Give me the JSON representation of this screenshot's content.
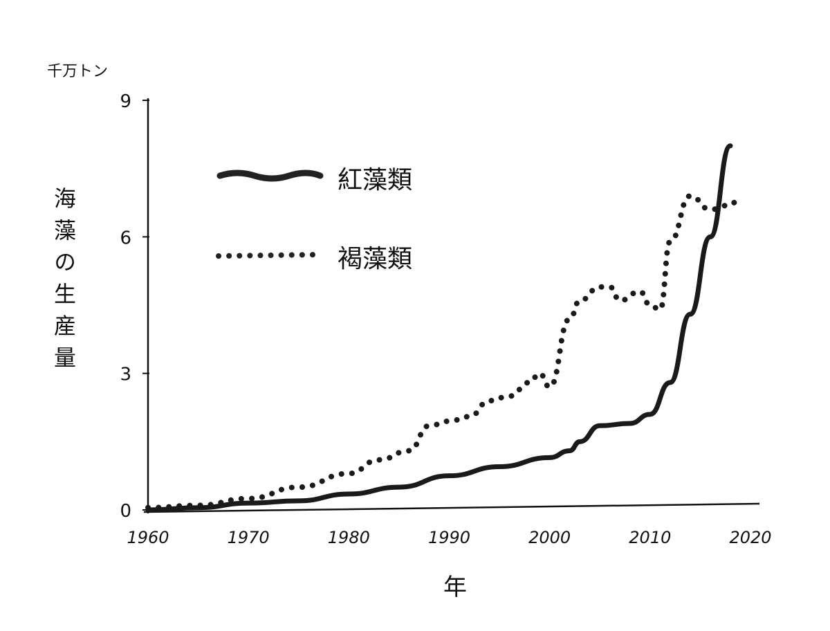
{
  "chart_data": {
    "type": "line",
    "title": "",
    "unit_label": "千万トン",
    "ylabel": "海藻の生産量",
    "xlabel": "年",
    "xlim": [
      1960,
      2020
    ],
    "ylim": [
      0,
      9
    ],
    "x_ticks": [
      1960,
      1970,
      1980,
      1990,
      2000,
      2010,
      2020
    ],
    "y_ticks": [
      0,
      3,
      6,
      9
    ],
    "grid": false,
    "legend_position": "top-left",
    "series": [
      {
        "name": "紅藻類",
        "style": "solid",
        "x": [
          1960,
          1965,
          1970,
          1975,
          1980,
          1985,
          1990,
          1995,
          2000,
          2002,
          2003,
          2005,
          2008,
          2010,
          2012,
          2014,
          2016,
          2018
        ],
        "values": [
          0,
          0.05,
          0.15,
          0.2,
          0.35,
          0.5,
          0.75,
          0.95,
          1.15,
          1.3,
          1.5,
          1.85,
          1.9,
          2.1,
          2.8,
          4.3,
          6.0,
          8.0
        ]
      },
      {
        "name": "褐藻類",
        "style": "dotted",
        "x": [
          1960,
          1965,
          1970,
          1975,
          1980,
          1983,
          1986,
          1988,
          1990,
          1992,
          1994,
          1996,
          1998,
          1999,
          2000,
          2002,
          2003,
          2005,
          2006,
          2007,
          2009,
          2010,
          2011,
          2012,
          2014,
          2016,
          2018,
          2019
        ],
        "values": [
          0.05,
          0.1,
          0.25,
          0.5,
          0.8,
          1.1,
          1.3,
          1.85,
          1.95,
          2.05,
          2.4,
          2.5,
          2.8,
          3.0,
          2.7,
          4.2,
          4.6,
          4.9,
          4.9,
          4.6,
          4.8,
          4.5,
          4.4,
          5.9,
          6.9,
          6.6,
          6.7,
          6.9
        ]
      }
    ]
  }
}
